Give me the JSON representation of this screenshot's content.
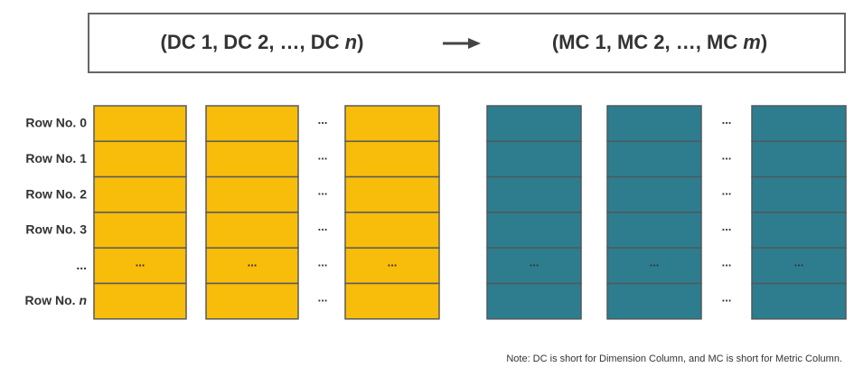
{
  "header": {
    "left": {
      "text": "(DC 1, DC 2, …, DC ",
      "var": "n",
      "close": ")"
    },
    "right": {
      "text": "(MC 1, MC 2, …, MC ",
      "var": "m",
      "close": ")"
    }
  },
  "rows": [
    {
      "label": "Row No. 0"
    },
    {
      "label": "Row No. 1"
    },
    {
      "label": "Row No. 2"
    },
    {
      "label": "Row No. 3"
    },
    {
      "label": "..."
    },
    {
      "label": "Row No. ",
      "var": "n"
    }
  ],
  "ellipsis": "...",
  "note": "Note: DC is short for Dimension Column, and MC is short for Metric Column."
}
